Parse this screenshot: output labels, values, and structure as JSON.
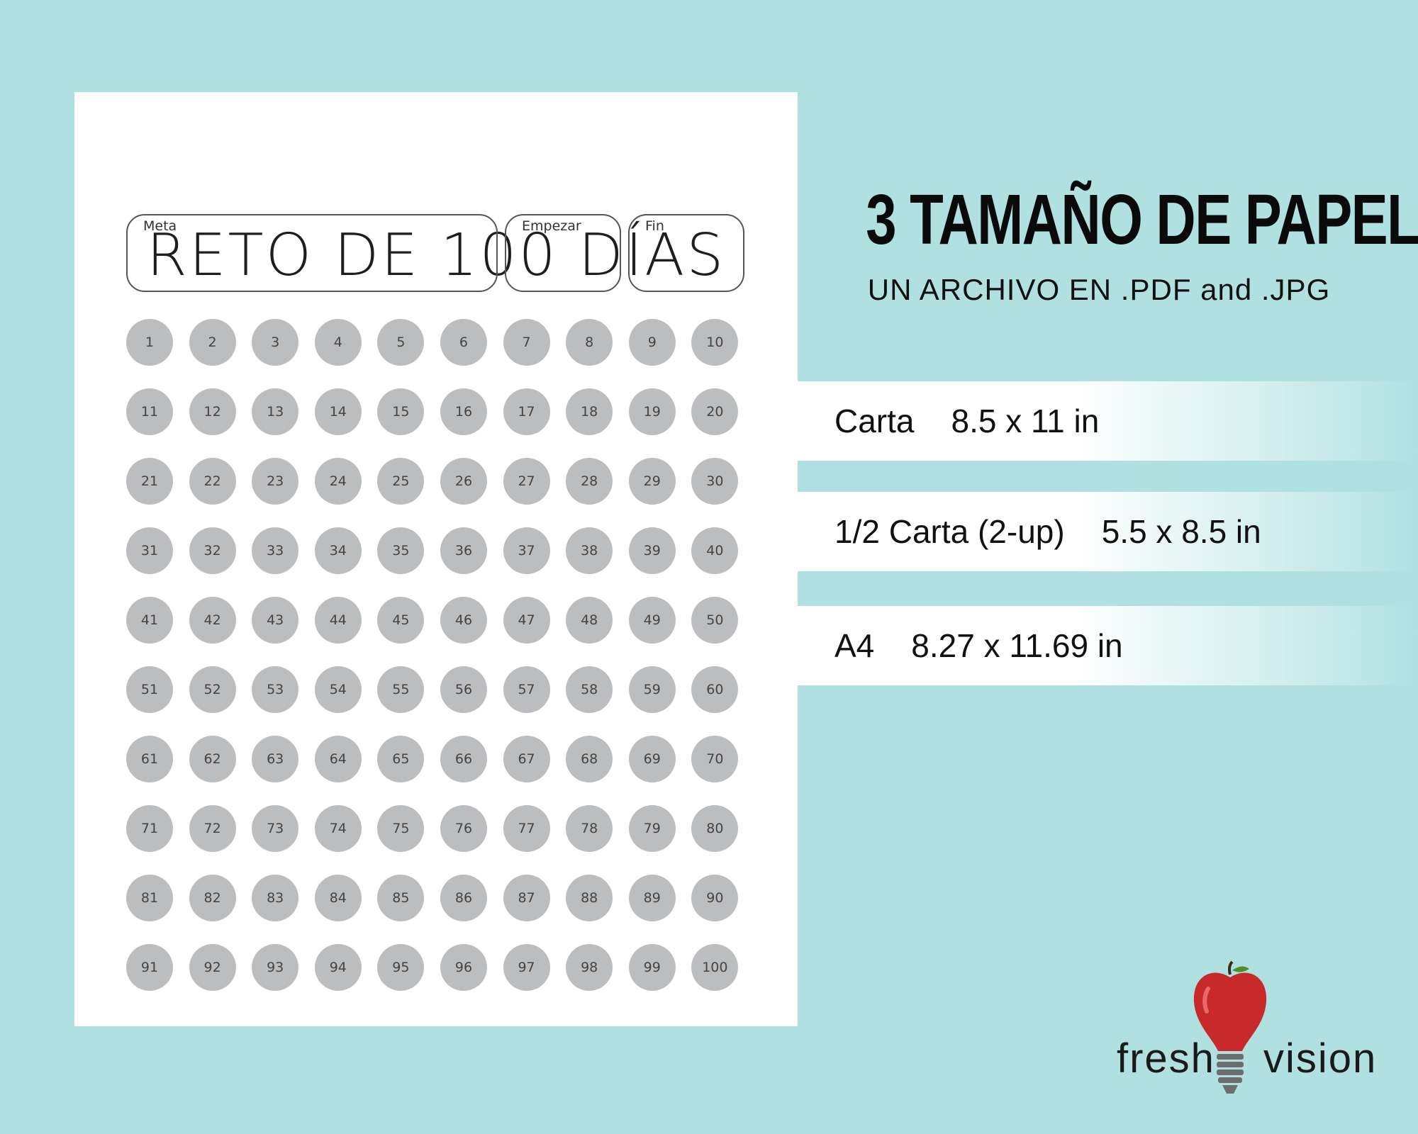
{
  "sheet": {
    "title": "RETO DE 100 DÍAS",
    "fields": {
      "meta": "Meta",
      "start": "Empezar",
      "end": "Fin"
    },
    "circles": [
      "1",
      "2",
      "3",
      "4",
      "5",
      "6",
      "7",
      "8",
      "9",
      "10",
      "11",
      "12",
      "13",
      "14",
      "15",
      "16",
      "17",
      "18",
      "19",
      "20",
      "21",
      "22",
      "23",
      "24",
      "25",
      "26",
      "27",
      "28",
      "29",
      "30",
      "31",
      "32",
      "33",
      "34",
      "35",
      "36",
      "37",
      "38",
      "39",
      "40",
      "41",
      "42",
      "43",
      "44",
      "45",
      "46",
      "47",
      "48",
      "49",
      "50",
      "51",
      "52",
      "53",
      "54",
      "55",
      "56",
      "57",
      "58",
      "59",
      "60",
      "61",
      "62",
      "63",
      "64",
      "65",
      "66",
      "67",
      "68",
      "69",
      "70",
      "71",
      "72",
      "73",
      "74",
      "75",
      "76",
      "77",
      "78",
      "79",
      "80",
      "81",
      "82",
      "83",
      "84",
      "85",
      "86",
      "87",
      "88",
      "89",
      "90",
      "91",
      "92",
      "93",
      "94",
      "95",
      "96",
      "97",
      "98",
      "99",
      "100"
    ]
  },
  "promo": {
    "headline": "3 TAMAÑO DE PAPEL",
    "subline": "UN ARCHIVO EN .PDF and .JPG",
    "sizes": [
      {
        "name": "Carta",
        "size": "8.5 x 11 in"
      },
      {
        "name": "1/2 Carta (2-up)",
        "size": "5.5 x 8.5 in"
      },
      {
        "name": "A4",
        "size": "8.27 x 11.69 in"
      }
    ]
  },
  "logo": {
    "left": "fresh",
    "right": "vision"
  },
  "colors": {
    "background": "#b1e0e1",
    "circle": "#bcbdbf",
    "apple": "#c8292b"
  }
}
